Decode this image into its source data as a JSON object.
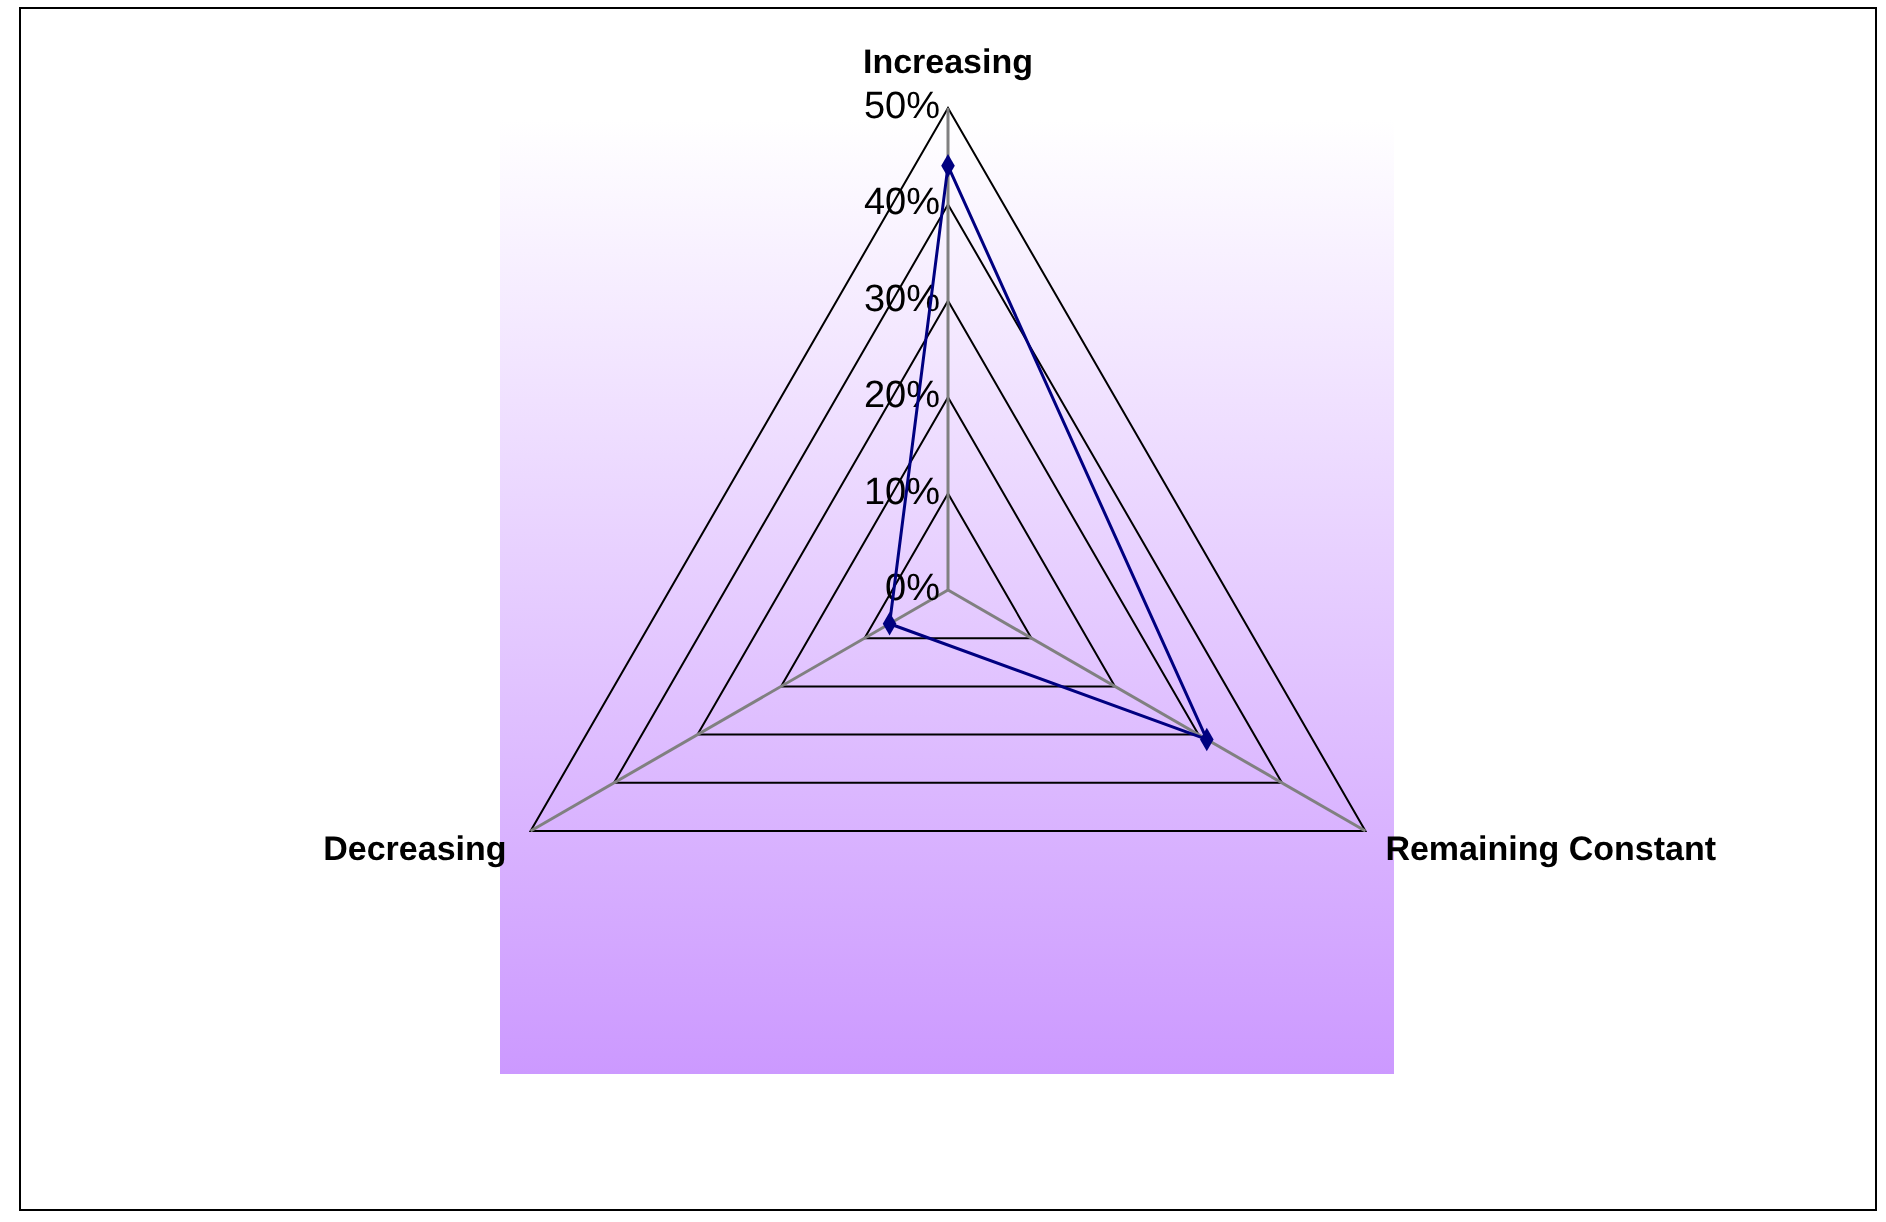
{
  "chart_data": {
    "type": "radar",
    "categories": [
      "Increasing",
      "Remaining Constant",
      "Decreasing"
    ],
    "series": [
      {
        "color": "#000080",
        "values": [
          44,
          31,
          7
        ]
      }
    ],
    "ylim": [
      0,
      50
    ],
    "yticks": [
      {
        "value": 0,
        "label": "0%"
      },
      {
        "value": 10,
        "label": "10%"
      },
      {
        "value": 20,
        "label": "20%"
      },
      {
        "value": 30,
        "label": "30%"
      },
      {
        "value": 40,
        "label": "40%"
      },
      {
        "value": 50,
        "label": "50%"
      }
    ],
    "marker": "diamond"
  }
}
